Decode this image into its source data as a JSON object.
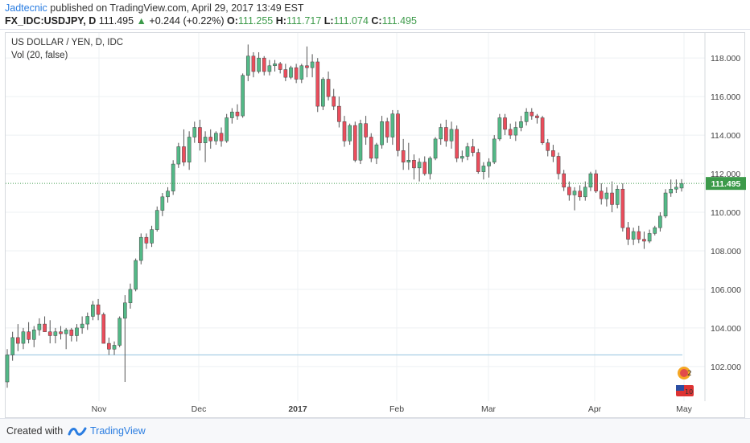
{
  "header": {
    "author": "Jadtecnic",
    "published_text": " published on TradingView.com, April 29, 2017 13:49 EST",
    "symbol": "FX_IDC:USDJPY, D",
    "last": "111.495",
    "change_arrow": "▲",
    "change": "+0.244 (+0.22%)",
    "o_label": "O:",
    "o_value": "111.255",
    "h_label": "H:",
    "h_value": "111.717",
    "l_label": "L:",
    "l_value": "111.074",
    "c_label": "C:",
    "c_value": "111.495"
  },
  "chart": {
    "title": "US DOLLAR / YEN, D, IDC",
    "indicator": "Vol (20, false)",
    "price_tag": "111.495"
  },
  "chart_data": {
    "type": "candlestick",
    "title": "US DOLLAR / YEN, D, IDC",
    "ylim": [
      100.2,
      119.3
    ],
    "y_ticks": [
      "102.000",
      "104.000",
      "106.000",
      "108.000",
      "110.000",
      "112.000",
      "114.000",
      "116.000",
      "118.000"
    ],
    "x_ticks": [
      "Nov",
      "Dec",
      "2017",
      "Feb",
      "Mar",
      "Apr",
      "May"
    ],
    "last_price": 111.495,
    "horizontal_line": 102.6,
    "colors": {
      "up": "#53b987",
      "down": "#eb4d5c",
      "wick": "#555555",
      "price_line": "#3c9a4a",
      "hline": "#9ecae1"
    },
    "ohlc": [
      [
        101.2,
        102.9,
        100.9,
        102.6
      ],
      [
        102.6,
        103.8,
        102.3,
        103.5
      ],
      [
        103.5,
        104.2,
        102.8,
        103.2
      ],
      [
        103.2,
        104.0,
        102.9,
        103.8
      ],
      [
        103.8,
        104.3,
        103.2,
        103.4
      ],
      [
        103.4,
        104.1,
        103.0,
        103.9
      ],
      [
        103.9,
        104.5,
        103.6,
        104.2
      ],
      [
        104.2,
        104.6,
        103.8,
        103.8
      ],
      [
        103.8,
        104.4,
        103.2,
        103.6
      ],
      [
        103.6,
        104.0,
        103.2,
        103.8
      ],
      [
        103.8,
        104.1,
        103.4,
        103.7
      ],
      [
        103.7,
        104.0,
        102.9,
        103.9
      ],
      [
        103.9,
        104.0,
        103.3,
        103.6
      ],
      [
        103.6,
        104.2,
        103.3,
        104.0
      ],
      [
        104.0,
        104.6,
        103.7,
        104.2
      ],
      [
        104.2,
        104.8,
        103.9,
        104.6
      ],
      [
        104.6,
        105.4,
        104.4,
        105.2
      ],
      [
        105.2,
        105.5,
        104.4,
        104.7
      ],
      [
        104.7,
        104.8,
        103.2,
        103.2
      ],
      [
        103.2,
        103.5,
        102.6,
        102.9
      ],
      [
        102.9,
        103.3,
        102.6,
        103.1
      ],
      [
        103.1,
        104.6,
        103.0,
        104.5
      ],
      [
        104.5,
        105.7,
        101.2,
        105.3
      ],
      [
        105.3,
        106.3,
        105.0,
        106.0
      ],
      [
        106.0,
        107.6,
        105.9,
        107.5
      ],
      [
        107.5,
        108.9,
        107.3,
        108.7
      ],
      [
        108.7,
        108.9,
        108.1,
        108.4
      ],
      [
        108.4,
        109.3,
        108.2,
        109.1
      ],
      [
        109.1,
        110.3,
        109.0,
        110.1
      ],
      [
        110.1,
        111.0,
        109.8,
        110.8
      ],
      [
        110.8,
        111.3,
        110.5,
        111.1
      ],
      [
        111.1,
        112.7,
        110.9,
        112.5
      ],
      [
        112.5,
        113.6,
        112.3,
        113.4
      ],
      [
        113.4,
        114.3,
        112.4,
        112.6
      ],
      [
        112.6,
        114.2,
        112.2,
        113.9
      ],
      [
        113.9,
        114.7,
        113.6,
        114.4
      ],
      [
        114.4,
        114.8,
        113.2,
        113.6
      ],
      [
        113.6,
        114.2,
        112.6,
        113.9
      ],
      [
        113.9,
        114.3,
        113.3,
        113.7
      ],
      [
        113.7,
        114.2,
        113.5,
        114.1
      ],
      [
        114.1,
        114.4,
        113.4,
        113.7
      ],
      [
        113.7,
        115.1,
        113.6,
        114.9
      ],
      [
        114.9,
        115.4,
        114.6,
        115.2
      ],
      [
        115.2,
        115.6,
        114.8,
        115.0
      ],
      [
        115.0,
        117.2,
        114.9,
        117.1
      ],
      [
        117.1,
        118.7,
        116.8,
        118.1
      ],
      [
        118.1,
        118.3,
        117.0,
        117.3
      ],
      [
        117.3,
        118.3,
        117.2,
        118.0
      ],
      [
        118.0,
        118.1,
        117.1,
        117.3
      ],
      [
        117.3,
        117.9,
        117.1,
        117.6
      ],
      [
        117.6,
        117.9,
        117.3,
        117.7
      ],
      [
        117.7,
        117.8,
        117.2,
        117.4
      ],
      [
        117.4,
        117.7,
        116.8,
        117.0
      ],
      [
        117.0,
        117.6,
        116.9,
        117.5
      ],
      [
        117.5,
        117.7,
        116.7,
        116.9
      ],
      [
        116.9,
        117.7,
        116.7,
        117.6
      ],
      [
        117.6,
        118.6,
        117.0,
        117.5
      ],
      [
        117.5,
        118.2,
        117.0,
        117.8
      ],
      [
        117.8,
        118.0,
        115.2,
        115.5
      ],
      [
        115.5,
        117.0,
        115.3,
        116.9
      ],
      [
        116.9,
        117.3,
        115.8,
        116.0
      ],
      [
        116.0,
        116.4,
        115.3,
        115.5
      ],
      [
        115.5,
        116.0,
        114.4,
        114.7
      ],
      [
        114.7,
        115.0,
        113.4,
        113.7
      ],
      [
        113.7,
        114.6,
        113.5,
        114.5
      ],
      [
        114.5,
        114.7,
        112.6,
        112.7
      ],
      [
        112.7,
        114.8,
        112.5,
        114.6
      ],
      [
        114.6,
        115.0,
        113.5,
        113.9
      ],
      [
        113.9,
        114.1,
        112.6,
        112.8
      ],
      [
        112.8,
        113.6,
        112.5,
        113.5
      ],
      [
        113.5,
        115.0,
        113.3,
        114.7
      ],
      [
        114.7,
        114.9,
        113.6,
        113.9
      ],
      [
        113.9,
        115.3,
        113.5,
        115.1
      ],
      [
        115.1,
        115.3,
        112.9,
        113.2
      ],
      [
        113.2,
        113.8,
        112.2,
        112.6
      ],
      [
        112.6,
        113.6,
        112.2,
        112.7
      ],
      [
        112.7,
        113.0,
        111.7,
        112.3
      ],
      [
        112.3,
        112.8,
        111.6,
        112.6
      ],
      [
        112.6,
        112.9,
        111.9,
        112.0
      ],
      [
        112.0,
        112.9,
        111.7,
        112.8
      ],
      [
        112.8,
        113.9,
        112.7,
        113.8
      ],
      [
        113.8,
        114.6,
        113.5,
        114.4
      ],
      [
        114.4,
        114.8,
        113.4,
        113.7
      ],
      [
        113.7,
        114.7,
        113.3,
        114.3
      ],
      [
        114.3,
        114.5,
        112.6,
        112.8
      ],
      [
        112.8,
        113.2,
        112.6,
        112.9
      ],
      [
        112.9,
        113.6,
        112.7,
        113.4
      ],
      [
        113.4,
        113.8,
        112.9,
        113.1
      ],
      [
        113.1,
        113.3,
        112.0,
        112.1
      ],
      [
        112.1,
        112.6,
        111.7,
        112.4
      ],
      [
        112.4,
        112.8,
        111.8,
        112.6
      ],
      [
        112.6,
        114.0,
        112.5,
        113.8
      ],
      [
        113.8,
        115.1,
        113.7,
        114.9
      ],
      [
        114.9,
        115.1,
        114.0,
        114.3
      ],
      [
        114.3,
        114.6,
        113.8,
        114.0
      ],
      [
        114.0,
        114.7,
        113.7,
        114.4
      ],
      [
        114.4,
        115.0,
        114.2,
        114.7
      ],
      [
        114.7,
        115.4,
        114.5,
        115.2
      ],
      [
        115.2,
        115.4,
        114.8,
        115.0
      ],
      [
        115.0,
        115.1,
        114.6,
        114.9
      ],
      [
        114.9,
        115.0,
        113.5,
        113.6
      ],
      [
        113.6,
        113.8,
        112.9,
        113.2
      ],
      [
        113.2,
        113.5,
        112.6,
        112.9
      ],
      [
        112.9,
        113.1,
        111.7,
        112.0
      ],
      [
        112.0,
        112.2,
        111.1,
        111.3
      ],
      [
        111.3,
        111.6,
        110.6,
        110.9
      ],
      [
        110.9,
        111.3,
        110.1,
        111.1
      ],
      [
        111.1,
        111.4,
        110.6,
        110.8
      ],
      [
        110.8,
        111.6,
        110.6,
        111.3
      ],
      [
        111.3,
        112.1,
        111.1,
        112.0
      ],
      [
        112.0,
        112.2,
        111.0,
        111.1
      ],
      [
        111.1,
        111.5,
        110.4,
        110.7
      ],
      [
        110.7,
        111.3,
        110.3,
        111.0
      ],
      [
        111.0,
        111.6,
        110.0,
        110.4
      ],
      [
        110.4,
        111.4,
        110.2,
        111.2
      ],
      [
        111.2,
        111.5,
        109.0,
        109.2
      ],
      [
        109.2,
        109.5,
        108.3,
        108.6
      ],
      [
        108.6,
        109.2,
        108.3,
        109.0
      ],
      [
        109.0,
        109.3,
        108.4,
        108.6
      ],
      [
        108.6,
        109.0,
        108.1,
        108.5
      ],
      [
        108.5,
        109.1,
        108.4,
        108.9
      ],
      [
        108.9,
        109.3,
        108.8,
        109.2
      ],
      [
        109.2,
        110.0,
        109.0,
        109.8
      ],
      [
        109.8,
        111.2,
        109.7,
        111.0
      ],
      [
        111.0,
        111.7,
        110.8,
        111.2
      ],
      [
        111.2,
        111.7,
        111.0,
        111.3
      ],
      [
        111.255,
        111.717,
        111.074,
        111.495
      ]
    ]
  },
  "footer": {
    "created_with": "Created with",
    "brand": "TradingView"
  },
  "badge": {
    "line1": "2",
    "line2": "10"
  }
}
